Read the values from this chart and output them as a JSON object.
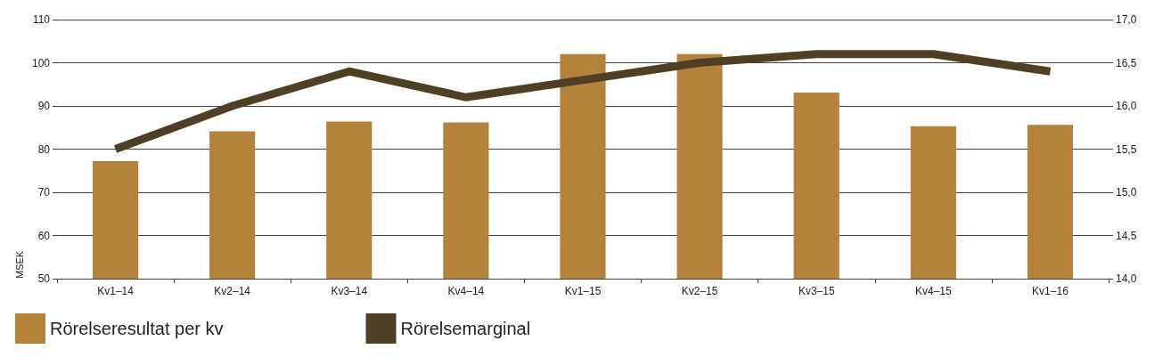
{
  "chart_data": {
    "type": "bar",
    "ylabel": "MSEK",
    "categories": [
      "Kv1–14",
      "Kv2–14",
      "Kv3–14",
      "Kv4–14",
      "Kv1–15",
      "Kv2–15",
      "Kv3–15",
      "Kv4–15",
      "Kv1–16"
    ],
    "series": [
      {
        "name": "Rörelseresultat per kv",
        "color": "#b5823b",
        "values": [
          77.2,
          84.1,
          86.4,
          86.2,
          102.0,
          102.0,
          93.1,
          85.3,
          85.6
        ]
      },
      {
        "name": "Rörelsemarginal",
        "type": "line",
        "axis": "y2",
        "color": "#4f4025",
        "values": [
          15.5,
          16.0,
          16.4,
          16.1,
          16.3,
          16.5,
          16.6,
          16.6,
          16.4
        ]
      }
    ],
    "ylim": [
      50,
      110
    ],
    "yticks": [
      50,
      60,
      70,
      80,
      90,
      100,
      110
    ],
    "y2lim": [
      14.0,
      17.0
    ],
    "y2ticks": [
      {
        "value": 14.0,
        "label": "14,0"
      },
      {
        "value": 14.5,
        "label": "14,5"
      },
      {
        "value": 15.0,
        "label": "15,0"
      },
      {
        "value": 15.5,
        "label": "15,5"
      },
      {
        "value": 16.0,
        "label": "16,0"
      },
      {
        "value": 16.5,
        "label": "16,5"
      },
      {
        "value": 17.0,
        "label": "17,0"
      }
    ],
    "grid": "y",
    "legend": "bottom left",
    "marker": "none",
    "line_style": "solid"
  }
}
